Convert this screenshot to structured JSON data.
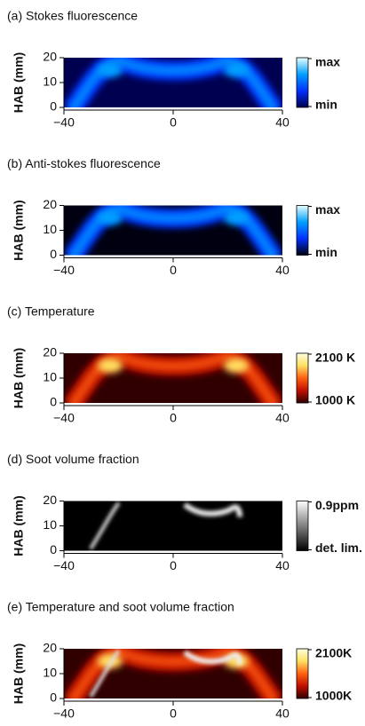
{
  "chart_data": [
    {
      "type": "heatmap",
      "title": "(a) Stokes fluorescence",
      "ylabel": "HAB (mm)",
      "xlim": [
        -40,
        40
      ],
      "xticks": [
        {
          "value": -40,
          "label": "−40"
        },
        0,
        40
      ],
      "ylim": [
        0,
        20
      ],
      "yticks": [
        0,
        10,
        20
      ],
      "colorbar": {
        "max": "max",
        "min": "min",
        "colors": [
          "#000050",
          "#0030ff",
          "#00a0ff",
          "#e8ffff"
        ]
      }
    },
    {
      "type": "heatmap",
      "title": "(b) Anti-stokes fluorescence",
      "ylabel": "HAB (mm)",
      "xlim": [
        -40,
        40
      ],
      "xticks": [
        {
          "value": -40,
          "label": "−40"
        },
        0,
        40
      ],
      "ylim": [
        0,
        20
      ],
      "yticks": [
        0,
        10,
        20
      ],
      "colorbar": {
        "max": "max",
        "min": "min",
        "colors": [
          "#000010",
          "#0030ff",
          "#00a0ff",
          "#e8ffff"
        ]
      }
    },
    {
      "type": "heatmap",
      "title": "(c) Temperature",
      "ylabel": "HAB (mm)",
      "xlim": [
        -40,
        40
      ],
      "xticks": [
        {
          "value": -40,
          "label": "−40"
        },
        0,
        40
      ],
      "ylim": [
        0,
        20
      ],
      "yticks": [
        0,
        10,
        20
      ],
      "colorbar": {
        "max": "2100 K",
        "min": "1000 K",
        "colors": [
          "#300000",
          "#c01000",
          "#ff6010",
          "#ffe060",
          "#ffffe0"
        ]
      }
    },
    {
      "type": "heatmap",
      "title": "(d) Soot volume fraction",
      "ylabel": "HAB (mm)",
      "xlim": [
        -40,
        40
      ],
      "xticks": [
        {
          "value": -40,
          "label": "−40"
        },
        0,
        40
      ],
      "ylim": [
        0,
        20
      ],
      "yticks": [
        0,
        10,
        20
      ],
      "colorbar": {
        "max": "0.9ppm",
        "min": "det. lim.",
        "colors": [
          "#000000",
          "#808080",
          "#ffffff"
        ]
      }
    },
    {
      "type": "heatmap",
      "title": "(e) Temperature and soot volume fraction",
      "ylabel": "HAB (mm)",
      "xlim": [
        -40,
        40
      ],
      "xticks": [
        {
          "value": -40,
          "label": "−40"
        },
        0,
        40
      ],
      "ylim": [
        0,
        20
      ],
      "yticks": [
        0,
        10,
        20
      ],
      "colorbar": {
        "max": "2100K",
        "min": "1000K",
        "colors": [
          "#300000",
          "#c01000",
          "#ff6010",
          "#ffe060",
          "#ffffe0"
        ]
      }
    }
  ]
}
